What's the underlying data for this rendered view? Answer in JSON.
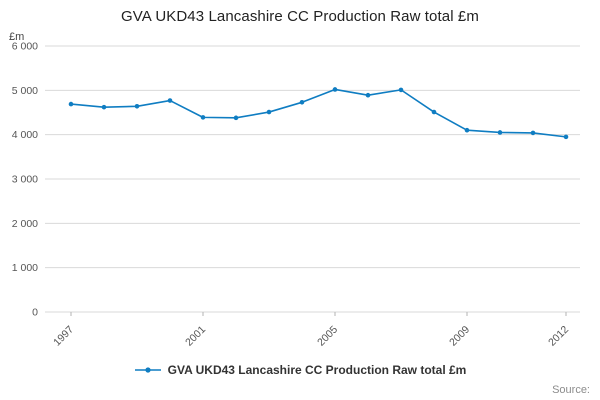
{
  "title": "GVA UKD43 Lancashire CC Production Raw total £m",
  "legend": {
    "label": "GVA UKD43 Lancashire CC Production Raw total £m"
  },
  "source_label": "Source:",
  "chart_data": {
    "type": "line",
    "title": "GVA UKD43 Lancashire CC Production Raw total £m",
    "ylabel": "£m",
    "xlabel": "",
    "x": [
      1997,
      1998,
      1999,
      2000,
      2001,
      2002,
      2003,
      2004,
      2005,
      2006,
      2007,
      2008,
      2009,
      2010,
      2011,
      2012
    ],
    "values": [
      4690,
      4620,
      4640,
      4770,
      4390,
      4380,
      4510,
      4730,
      5020,
      4890,
      5010,
      4510,
      4100,
      4050,
      4040,
      3950
    ],
    "ylim": [
      0,
      6000
    ],
    "yticks": [
      0,
      1000,
      2000,
      3000,
      4000,
      5000,
      6000
    ],
    "xticks": [
      1997,
      2001,
      2005,
      2009,
      2012
    ],
    "grid": "horizontal",
    "legend_position": "bottom",
    "line_color": "#0f7dc2",
    "grid_color": "#d9d9d9",
    "tick_label_color": "#555555"
  }
}
